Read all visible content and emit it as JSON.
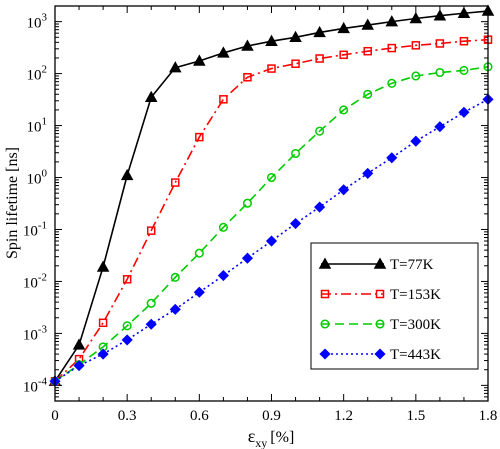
{
  "chart_data": {
    "type": "line",
    "xlabel": "ε",
    "xlabel_sub": "xy",
    "xlabel_unit": "[%]",
    "ylabel": "Spin lifetime [ns]",
    "xlim": [
      0,
      1.8
    ],
    "ylim": [
      5e-05,
      2000
    ],
    "yscale": "log",
    "grid": false,
    "legend_position": "bottom-right",
    "x_ticks": [
      0,
      0.3,
      0.6,
      0.9,
      1.2,
      1.5,
      1.8
    ],
    "x_tick_labels": [
      "0",
      "0.3",
      "0.6",
      "0.9",
      "1.2",
      "1.5",
      "1.8"
    ],
    "y_tick_exponents": [
      -4,
      -3,
      -2,
      -1,
      0,
      1,
      2,
      3
    ],
    "y_tick_base": "10",
    "series": [
      {
        "name": "T=77K",
        "color": "#000000",
        "marker": "triangle",
        "dash": "solid",
        "x": [
          0,
          0.1,
          0.2,
          0.3,
          0.4,
          0.5,
          0.6,
          0.7,
          0.8,
          0.9,
          1.0,
          1.1,
          1.2,
          1.3,
          1.4,
          1.5,
          1.6,
          1.7,
          1.8
        ],
        "y": [
          0.00012,
          0.0006,
          0.019,
          1.1,
          35,
          130,
          175,
          250,
          340,
          420,
          500,
          620,
          740,
          860,
          1000,
          1150,
          1300,
          1450,
          1600
        ]
      },
      {
        "name": "T=153K",
        "color": "#ff0000",
        "marker": "square",
        "dash": "dashdot",
        "x": [
          0,
          0.1,
          0.2,
          0.3,
          0.4,
          0.5,
          0.6,
          0.7,
          0.8,
          0.9,
          1.0,
          1.1,
          1.2,
          1.3,
          1.4,
          1.5,
          1.6,
          1.7,
          1.8
        ],
        "y": [
          0.00012,
          0.00032,
          0.0016,
          0.011,
          0.095,
          0.8,
          6,
          32,
          85,
          125,
          155,
          195,
          230,
          270,
          310,
          350,
          380,
          420,
          450
        ]
      },
      {
        "name": "T=300K",
        "color": "#00cc00",
        "marker": "circle",
        "dash": "dashed",
        "x": [
          0,
          0.1,
          0.2,
          0.3,
          0.4,
          0.5,
          0.6,
          0.7,
          0.8,
          0.9,
          1.0,
          1.1,
          1.2,
          1.3,
          1.4,
          1.5,
          1.6,
          1.7,
          1.8
        ],
        "y": [
          0.00012,
          0.00025,
          0.00055,
          0.0014,
          0.0038,
          0.012,
          0.035,
          0.11,
          0.32,
          1.0,
          2.9,
          7.8,
          20,
          40,
          65,
          90,
          105,
          115,
          135
        ]
      },
      {
        "name": "T=443K",
        "color": "#0000ff",
        "marker": "diamond",
        "dash": "dotted",
        "x": [
          0,
          0.1,
          0.2,
          0.3,
          0.4,
          0.5,
          0.6,
          0.7,
          0.8,
          0.9,
          1.0,
          1.1,
          1.2,
          1.3,
          1.4,
          1.5,
          1.6,
          1.7,
          1.8
        ],
        "y": [
          0.00012,
          0.00024,
          0.0004,
          0.00075,
          0.0015,
          0.0029,
          0.0062,
          0.013,
          0.028,
          0.06,
          0.13,
          0.27,
          0.58,
          1.2,
          2.4,
          5,
          9.5,
          18,
          32
        ]
      }
    ]
  }
}
